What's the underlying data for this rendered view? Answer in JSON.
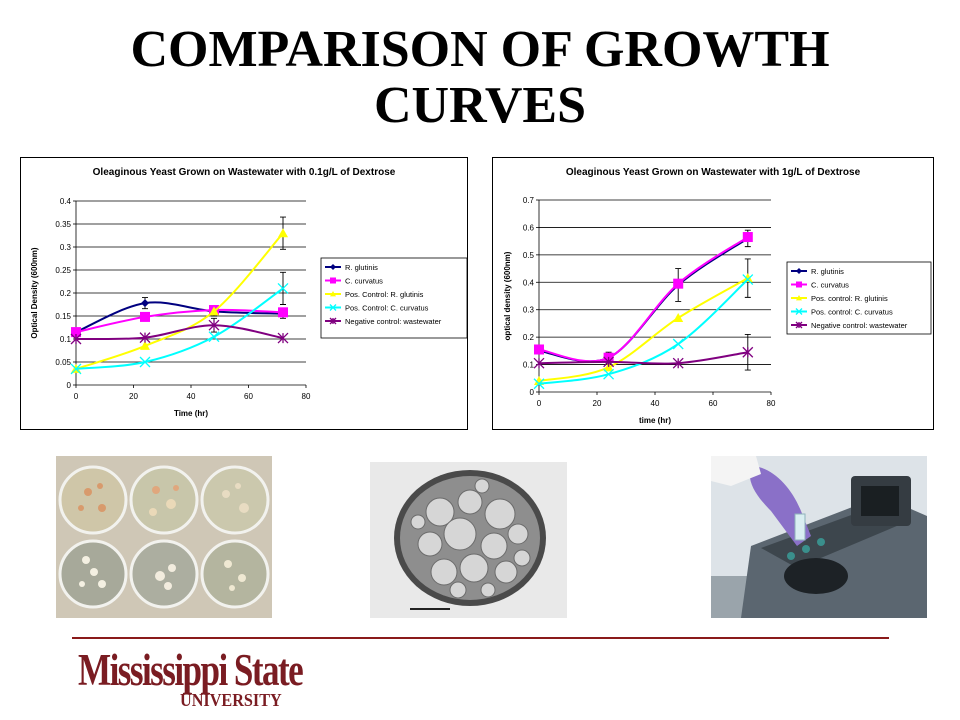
{
  "slide": {
    "title_line1": "COMPARISON OF GROWTH",
    "title_line2": "CURVES",
    "logo_main": "Mississippi State",
    "logo_sub": "UNIVERSITY"
  },
  "colors": {
    "s1": "#000080",
    "s2": "#ff00ff",
    "s3": "#ffff00",
    "s4": "#00ffff",
    "s5": "#800080"
  },
  "chart_data": [
    {
      "type": "line",
      "title": "Oleaginous Yeast Grown on Wastewater with 0.1g/L of Dextrose",
      "xlabel": "Time (hr)",
      "ylabel": "Optical Density (600nm)",
      "xlim": [
        0,
        80
      ],
      "ylim": [
        0,
        0.4
      ],
      "xticks": [
        0,
        20,
        40,
        60,
        80
      ],
      "yticks": [
        0,
        0.05,
        0.1,
        0.15,
        0.2,
        0.25,
        0.3,
        0.35,
        0.4
      ],
      "ytick_labels": [
        "0",
        "0.05",
        "0.1",
        "0.15",
        "0.2",
        "0.25",
        "0.3",
        "0.35",
        "0.4"
      ],
      "grid": "horizontal",
      "legend_position": "right",
      "x": [
        0,
        24,
        48,
        72
      ],
      "series": [
        {
          "name": "R. glutinis",
          "marker": "diamond",
          "values": [
            0.115,
            0.178,
            0.16,
            0.155
          ],
          "errors": [
            0.0,
            0.012,
            0.01,
            0.01
          ]
        },
        {
          "name": "C. curvatus",
          "marker": "square",
          "values": [
            0.115,
            0.148,
            0.163,
            0.158
          ],
          "errors": [
            0.0,
            0.0,
            0.0,
            0.0
          ]
        },
        {
          "name": "Pos. Control: R. glutinis",
          "marker": "triangle",
          "values": [
            0.035,
            0.085,
            0.16,
            0.33
          ],
          "errors": [
            0.0,
            0.0,
            0.0,
            0.035
          ]
        },
        {
          "name": "Pos. Control: C. curvatus",
          "marker": "x",
          "values": [
            0.035,
            0.05,
            0.105,
            0.21
          ],
          "errors": [
            0.0,
            0.0,
            0.0,
            0.035
          ]
        },
        {
          "name": "Negative control: wastewater",
          "marker": "star",
          "values": [
            0.1,
            0.103,
            0.13,
            0.102
          ],
          "errors": [
            0.0,
            0.0,
            0.015,
            0.0
          ]
        }
      ]
    },
    {
      "type": "line",
      "title": "Oleaginous Yeast Grown on Wastewater with 1g/L of Dextrose",
      "xlabel": "time (hr)",
      "ylabel": "optical density (600nm)",
      "xlim": [
        0,
        80
      ],
      "ylim": [
        0,
        0.7
      ],
      "xticks": [
        0,
        20,
        40,
        60,
        80
      ],
      "yticks": [
        0,
        0.1,
        0.2,
        0.3,
        0.4,
        0.5,
        0.6,
        0.7
      ],
      "ytick_labels": [
        "0",
        "0.1",
        "0.2",
        "0.3",
        "0.4",
        "0.5",
        "0.6",
        "0.7"
      ],
      "grid": "horizontal",
      "legend_position": "right",
      "x": [
        0,
        24,
        48,
        72
      ],
      "series": [
        {
          "name": "R. glutinis",
          "marker": "diamond",
          "values": [
            0.15,
            0.125,
            0.39,
            0.56
          ],
          "errors": [
            0.0,
            0.0,
            0.06,
            0.03
          ]
        },
        {
          "name": "C. curvatus",
          "marker": "square",
          "values": [
            0.155,
            0.125,
            0.395,
            0.565
          ],
          "errors": [
            0.0,
            0.02,
            0.0,
            0.0
          ]
        },
        {
          "name": "Pos. control: R. glutinis",
          "marker": "triangle",
          "values": [
            0.04,
            0.09,
            0.27,
            0.415
          ],
          "errors": [
            0.0,
            0.0,
            0.0,
            0.07
          ]
        },
        {
          "name": "Pos. control: C. curvatus",
          "marker": "x",
          "values": [
            0.03,
            0.065,
            0.175,
            0.41
          ],
          "errors": [
            0.0,
            0.0,
            0.0,
            0.0
          ]
        },
        {
          "name": "Negative control: wastewater",
          "marker": "star",
          "values": [
            0.105,
            0.11,
            0.105,
            0.145
          ],
          "errors": [
            0.0,
            0.0,
            0.0,
            0.065
          ]
        }
      ]
    }
  ]
}
